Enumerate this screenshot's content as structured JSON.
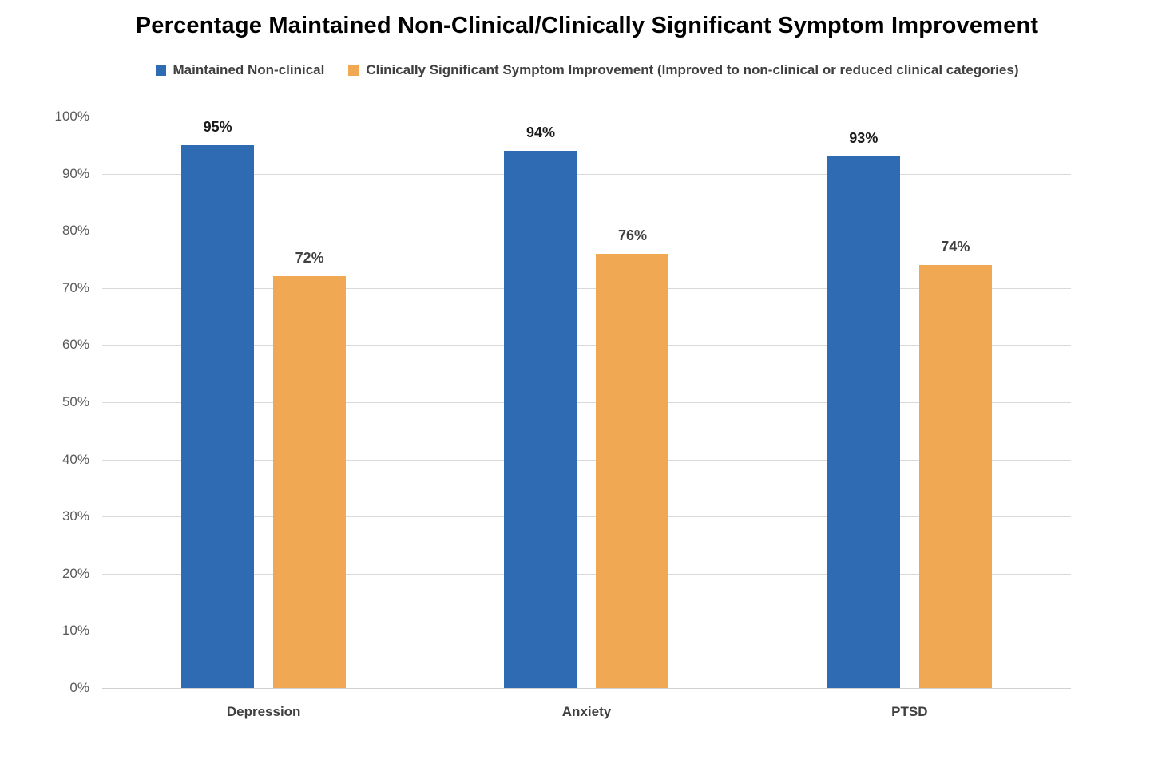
{
  "chart_data": {
    "type": "bar",
    "title": "Percentage Maintained Non-Clinical/Clinically Significant Symptom Improvement",
    "categories": [
      "Depression",
      "Anxiety",
      "PTSD"
    ],
    "series": [
      {
        "name": "Maintained Non-clinical",
        "color": "#2E6BB2",
        "label_color": "#1a1a1a",
        "values": [
          95,
          94,
          93
        ],
        "labels": [
          "95%",
          "94%",
          "93%"
        ]
      },
      {
        "name": "Clinically Significant Symptom Improvement (Improved to non-clinical or reduced clinical categories)",
        "color": "#F0A852",
        "label_color": "#404040",
        "values": [
          72,
          76,
          74
        ],
        "labels": [
          "72%",
          "76%",
          "74%"
        ]
      }
    ],
    "xlabel": "",
    "ylabel": "",
    "ylim": [
      0,
      100
    ],
    "grid": true,
    "legend_position": "top",
    "y_ticks": [
      {
        "value": 100,
        "label": "100%"
      },
      {
        "value": 90,
        "label": "90%"
      },
      {
        "value": 80,
        "label": "80%"
      },
      {
        "value": 70,
        "label": "70%"
      },
      {
        "value": 60,
        "label": "60%"
      },
      {
        "value": 50,
        "label": "50%"
      },
      {
        "value": 40,
        "label": "40%"
      },
      {
        "value": 30,
        "label": "30%"
      },
      {
        "value": 20,
        "label": "20%"
      },
      {
        "value": 10,
        "label": "10%"
      },
      {
        "value": 0,
        "label": "0%"
      }
    ]
  },
  "colors": {
    "gridline": "#D9D9D9",
    "baseline": "#D0D0D0",
    "axis_text": "#595959",
    "category_text": "#404040",
    "title_text": "#000000"
  }
}
